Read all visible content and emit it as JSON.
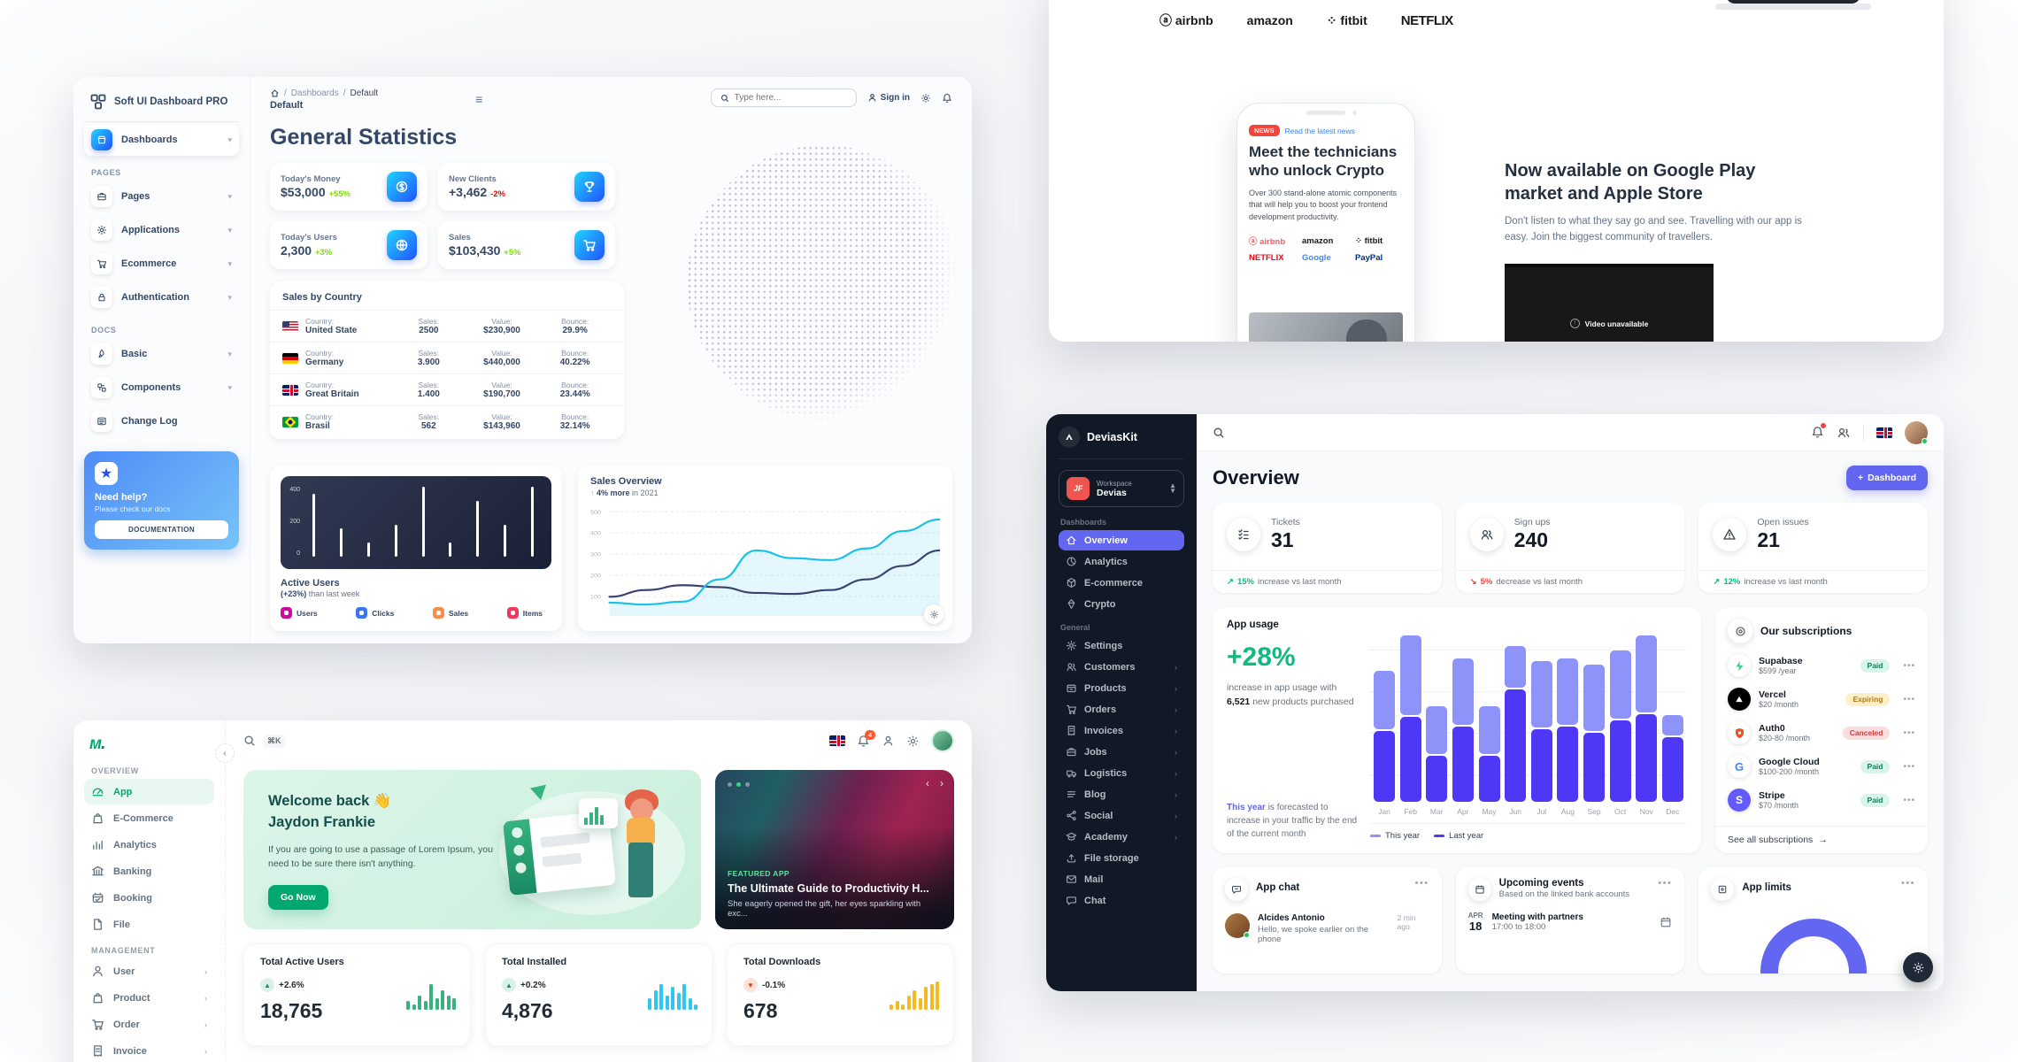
{
  "colors": {
    "softui_blue": "#2152ff",
    "softui_cyan": "#21d4fd",
    "softui_green": "#82d616",
    "softui_red": "#ea0606",
    "devias_purple": "#6366f1",
    "devias_teal": "#10b981",
    "minimal_green": "#00a76f",
    "minimal_blue": "#00b8d9",
    "minimal_yellow": "#ffab00",
    "netflix_red": "#e50914",
    "news_red": "#f2453d"
  },
  "softui": {
    "brand": "Soft UI Dashboard PRO",
    "sidebar": {
      "dashboards": {
        "label": "Dashboards",
        "icon": "shop-icon"
      },
      "sections": [
        {
          "title": "PAGES",
          "items": [
            {
              "label": "Pages",
              "icon": "briefcase-icon",
              "chevron": true
            },
            {
              "label": "Applications",
              "icon": "settings-icon",
              "chevron": true
            },
            {
              "label": "Ecommerce",
              "icon": "cart-icon",
              "chevron": true
            },
            {
              "label": "Authentication",
              "icon": "lock-icon",
              "chevron": true
            }
          ]
        },
        {
          "title": "DOCS",
          "items": [
            {
              "label": "Basic",
              "icon": "rocket-icon",
              "chevron": true
            },
            {
              "label": "Components",
              "icon": "components-icon",
              "chevron": true
            },
            {
              "label": "Change Log",
              "icon": "changelog-icon",
              "chevron": false
            }
          ]
        }
      ],
      "help": {
        "title": "Need help?",
        "subtitle": "Please check our docs",
        "button": "DOCUMENTATION"
      }
    },
    "header": {
      "breadcrumb": [
        "Dashboards",
        "Default"
      ],
      "page": "Default",
      "search_placeholder": "Type here...",
      "signin": "Sign in"
    },
    "title": "General Statistics",
    "stats": [
      {
        "label": "Today's Money",
        "value": "$53,000",
        "delta": "+55%",
        "trend": "up",
        "icon": "coin-icon"
      },
      {
        "label": "New Clients",
        "value": "+3,462",
        "delta": "-2%",
        "trend": "down",
        "icon": "trophy-icon"
      },
      {
        "label": "Today's Users",
        "value": "2,300",
        "delta": "+3%",
        "trend": "up",
        "icon": "globe-icon"
      },
      {
        "label": "Sales",
        "value": "$103,430",
        "delta": "+5%",
        "trend": "up",
        "icon": "cart-icon"
      }
    ],
    "sales_by_country": {
      "title": "Sales by Country",
      "labels": {
        "country": "Country:",
        "sales": "Sales:",
        "value": "Value:",
        "bounce": "Bounce:"
      },
      "rows": [
        {
          "flag": "us",
          "country": "United State",
          "sales": "2500",
          "value": "$230,900",
          "bounce": "29.9%"
        },
        {
          "flag": "de",
          "country": "Germany",
          "sales": "3.900",
          "value": "$440,000",
          "bounce": "40.22%"
        },
        {
          "flag": "gb",
          "country": "Great Britain",
          "sales": "1.400",
          "value": "$190,700",
          "bounce": "23.44%"
        },
        {
          "flag": "br",
          "country": "Brasil",
          "sales": "562",
          "value": "$143,960",
          "bounce": "32.14%"
        }
      ]
    },
    "active_users": {
      "title": "Active Users",
      "subtitle_bold": "(+23%)",
      "subtitle_rest": " than last week",
      "yticks": [
        "400",
        "200",
        "0"
      ],
      "bars": [
        450,
        200,
        100,
        230,
        500,
        100,
        400,
        230,
        500
      ],
      "ymax": 500,
      "legend": [
        {
          "label": "Users",
          "color": "#cb0c9f"
        },
        {
          "label": "Clicks",
          "color": "#3a74f2"
        },
        {
          "label": "Sales",
          "color": "#fb8c49"
        },
        {
          "label": "Items",
          "color": "#f5365c"
        }
      ]
    },
    "sales_overview": {
      "title": "Sales Overview",
      "delta_pct": "4% more",
      "delta_rest": " in 2021",
      "yticks": [
        "500",
        "400",
        "300",
        "200",
        "100"
      ],
      "series": [
        {
          "name": "cyan",
          "color": "#17c1e8",
          "values": [
            30,
            20,
            35,
            150,
            300,
            260,
            250,
            310,
            400,
            460
          ]
        },
        {
          "name": "navy",
          "color": "#3a416f",
          "values": [
            60,
            95,
            120,
            110,
            80,
            75,
            95,
            150,
            220,
            300
          ]
        }
      ]
    }
  },
  "landing": {
    "brands": [
      "airbnb",
      "amazon",
      "fitbit",
      "NETFLIX"
    ],
    "news_badge": "NEWS",
    "news_link": "Read the latest news",
    "headline": "Meet the technicians who unlock Crypto",
    "subtext": "Over 300 stand-alone atomic components that will help you to boost your frontend development productivity.",
    "phone_brands": [
      {
        "label": "airbnb",
        "color": "#ff5a5f"
      },
      {
        "label": "amazon",
        "color": "#16181c"
      },
      {
        "label": "fitbit",
        "color": "#16181c"
      },
      {
        "label": "NETFLIX",
        "color": "#e50914"
      },
      {
        "label": "Google",
        "color": "#4285f4"
      },
      {
        "label": "PayPal",
        "color": "#003087"
      }
    ],
    "right_title": "Now available on Google Play market and Apple Store",
    "right_text": "Don't listen to what they say go and see. Travelling with our app is easy. Join the biggest community of travellers.",
    "video_text": "Video unavailable"
  },
  "devias": {
    "brand": "DeviasKit",
    "workspace_label": "Workspace",
    "workspace_value": "Devias",
    "nav_sections": [
      {
        "title": "Dashboards",
        "items": [
          {
            "label": "Overview",
            "icon": "home-icon",
            "active": true
          },
          {
            "label": "Analytics",
            "icon": "pie-icon"
          },
          {
            "label": "E-commerce",
            "icon": "cube-icon"
          },
          {
            "label": "Crypto",
            "icon": "diamond-icon"
          }
        ]
      },
      {
        "title": "General",
        "items": [
          {
            "label": "Settings",
            "icon": "gear-icon"
          },
          {
            "label": "Customers",
            "icon": "users-icon",
            "chevron": true
          },
          {
            "label": "Products",
            "icon": "box-icon",
            "chevron": true
          },
          {
            "label": "Orders",
            "icon": "cart-icon",
            "chevron": true
          },
          {
            "label": "Invoices",
            "icon": "receipt-icon",
            "chevron": true
          },
          {
            "label": "Jobs",
            "icon": "briefcase-icon",
            "chevron": true
          },
          {
            "label": "Logistics",
            "icon": "truck-icon",
            "chevron": true
          },
          {
            "label": "Blog",
            "icon": "lines-icon",
            "chevron": true
          },
          {
            "label": "Social",
            "icon": "share-icon",
            "chevron": true
          },
          {
            "label": "Academy",
            "icon": "academy-icon",
            "chevron": true
          },
          {
            "label": "File storage",
            "icon": "upload-icon"
          },
          {
            "label": "Mail",
            "icon": "mail-icon"
          },
          {
            "label": "Chat",
            "icon": "chat-icon"
          }
        ]
      }
    ],
    "page_title": "Overview",
    "add_button": "Dashboard",
    "kpis": [
      {
        "label": "Tickets",
        "value": "31",
        "icon": "checklist-icon",
        "pct": "15%",
        "foot": " increase vs last month",
        "trend": "up"
      },
      {
        "label": "Sign ups",
        "value": "240",
        "icon": "users-icon",
        "pct": "5%",
        "foot": " decrease vs last month",
        "trend": "down"
      },
      {
        "label": "Open issues",
        "value": "21",
        "icon": "warning-icon",
        "pct": "12%",
        "foot": " increase vs last month",
        "trend": "up"
      }
    ],
    "app_usage": {
      "title": "App usage",
      "big": "+28%",
      "desc_pre": "increase in app usage with ",
      "desc_bold": "6,521",
      "desc_post": " new products purchased",
      "foot_bold": "This year",
      "foot_rest": " is forecasted to increase in your traffic by the end of the current month",
      "months": [
        "Jan",
        "Feb",
        "Mar",
        "Apr",
        "May",
        "Jun",
        "Jul",
        "Aug",
        "Sep",
        "Oct",
        "Nov",
        "Dec"
      ],
      "this_year": [
        28,
        38,
        23,
        32,
        23,
        20,
        32,
        32,
        32,
        33,
        37,
        10
      ],
      "last_year": [
        34,
        41,
        22,
        36,
        22,
        54,
        35,
        36,
        33,
        39,
        42,
        31
      ],
      "legend": [
        {
          "label": "This year",
          "color": "#8d93f8"
        },
        {
          "label": "Last year",
          "color": "#4e38f5"
        }
      ]
    },
    "subscriptions": {
      "title": "Our subscriptions",
      "rows": [
        {
          "name": "Supabase",
          "price": "$599",
          "period": "/year",
          "status": "Paid",
          "logo": "supabase-icon"
        },
        {
          "name": "Vercel",
          "price": "$20",
          "period": "/month",
          "status": "Expiring",
          "logo": "vercel-icon"
        },
        {
          "name": "Auth0",
          "price": "$20-80",
          "period": "/month",
          "status": "Canceled",
          "logo": "auth0-icon"
        },
        {
          "name": "Google Cloud",
          "price": "$100-200",
          "period": "/month",
          "status": "Paid",
          "logo": "google-icon"
        },
        {
          "name": "Stripe",
          "price": "$70",
          "period": "/month",
          "status": "Paid",
          "logo": "stripe-icon"
        }
      ],
      "footer": "See all subscriptions"
    },
    "app_chat": {
      "title": "App chat",
      "name": "Alcides Antonio",
      "message": "Hello, we spoke earlier on the phone",
      "time": "2 min ago"
    },
    "events": {
      "title": "Upcoming events",
      "subtitle": "Based on the linked bank accounts",
      "month": "APR",
      "day": "18",
      "event": "Meeting with partners",
      "time": "17:00 to 18:00"
    },
    "app_limits": {
      "title": "App limits"
    }
  },
  "minimal": {
    "search_shortcut": "⌘K",
    "bell_badge": "4",
    "nav_sections": [
      {
        "title": "OVERVIEW",
        "items": [
          {
            "label": "App",
            "icon": "gauge-icon",
            "active": true
          },
          {
            "label": "E-Commerce",
            "icon": "bag-icon"
          },
          {
            "label": "Analytics",
            "icon": "chart-icon"
          },
          {
            "label": "Banking",
            "icon": "bank-icon"
          },
          {
            "label": "Booking",
            "icon": "booking-icon"
          },
          {
            "label": "File",
            "icon": "file-icon"
          }
        ]
      },
      {
        "title": "MANAGEMENT",
        "items": [
          {
            "label": "User",
            "icon": "person-icon",
            "chevron": true
          },
          {
            "label": "Product",
            "icon": "bag-icon",
            "chevron": true
          },
          {
            "label": "Order",
            "icon": "cart-icon",
            "chevron": true
          },
          {
            "label": "Invoice",
            "icon": "receipt-icon",
            "chevron": true
          }
        ]
      }
    ],
    "welcome": {
      "title_line1": "Welcome back 👋",
      "title_line2": "Jaydon Frankie",
      "text": "If you are going to use a passage of Lorem Ipsum, you need to be sure there isn't anything.",
      "button": "Go Now"
    },
    "featured": {
      "tag": "FEATURED APP",
      "title": "The Ultimate Guide to Productivity H...",
      "subtitle": "She eagerly opened the gift, her eyes sparkling with exc..."
    },
    "stats": [
      {
        "label": "Total Active Users",
        "delta": "+2.6%",
        "value": "18,765",
        "trend": "up",
        "color": "#36b37e",
        "spark": [
          3,
          2,
          5,
          3,
          9,
          4,
          7,
          5,
          4
        ]
      },
      {
        "label": "Total Installed",
        "delta": "+0.2%",
        "value": "4,876",
        "trend": "up",
        "color": "#2fc6f0",
        "spark": [
          4,
          7,
          9,
          5,
          8,
          6,
          9,
          4,
          2
        ]
      },
      {
        "label": "Total Downloads",
        "delta": "-0.1%",
        "value": "678",
        "trend": "down",
        "color": "#f5b924",
        "spark": [
          2,
          3,
          2,
          5,
          7,
          4,
          8,
          9,
          10
        ]
      }
    ]
  }
}
